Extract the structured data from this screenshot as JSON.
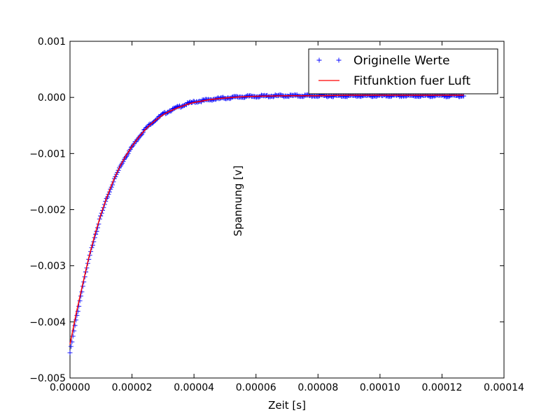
{
  "chart_data": {
    "type": "scatter",
    "xlabel": "Zeit [s]",
    "ylabel": "Spannung [v]",
    "xlim": [
      0,
      0.00014
    ],
    "ylim": [
      -0.005,
      0.001
    ],
    "x_ticks": [
      "0.00000",
      "0.00002",
      "0.00004",
      "0.00006",
      "0.00008",
      "0.00010",
      "0.00012",
      "0.00014"
    ],
    "y_ticks": [
      "0.001",
      "0.000",
      "−0.001",
      "−0.002",
      "−0.003",
      "−0.004",
      "−0.005"
    ],
    "legend_position": "top-right",
    "grid": false,
    "series": [
      {
        "name": "Originelle Werte",
        "kind": "points",
        "marker": "+",
        "color": "#0000ff",
        "points": [
          [
            0.0,
            -0.00455
          ],
          [
            2e-06,
            -0.00395
          ],
          [
            4e-06,
            -0.0034
          ],
          [
            6e-06,
            -0.0029
          ],
          [
            8e-06,
            -0.00248
          ],
          [
            1e-05,
            -0.0021
          ],
          [
            1.2e-05,
            -0.00178
          ],
          [
            1.4e-05,
            -0.0015
          ],
          [
            1.6e-05,
            -0.00125
          ],
          [
            1.8e-05,
            -0.00105
          ],
          [
            2e-05,
            -0.00088
          ],
          [
            2.2e-05,
            -0.00072
          ],
          [
            2.4e-05,
            -0.00058
          ],
          [
            2.6e-05,
            -0.00047
          ],
          [
            2.8e-05,
            -0.00038
          ],
          [
            3e-05,
            -0.0003
          ],
          [
            3.2e-05,
            -0.00024
          ],
          [
            3.5e-05,
            -0.00017
          ],
          [
            3.8e-05,
            -0.00011
          ],
          [
            4e-05,
            -8e-05
          ],
          [
            4.5e-05,
            -4e-05
          ],
          [
            5e-05,
            -1e-05
          ],
          [
            5.5e-05,
            1e-05
          ],
          [
            6e-05,
            2e-05
          ],
          [
            7e-05,
            3e-05
          ],
          [
            8e-05,
            3e-05
          ],
          [
            9e-05,
            3e-05
          ],
          [
            0.0001,
            3e-05
          ],
          [
            0.00011,
            3e-05
          ],
          [
            0.00012,
            3e-05
          ],
          [
            0.000127,
            3e-05
          ]
        ]
      },
      {
        "name": "Fitfunktion fuer Luft",
        "kind": "line",
        "color": "#ff0000",
        "points": [
          [
            0.0,
            -0.0044
          ],
          [
            2e-06,
            -0.00385
          ],
          [
            4e-06,
            -0.00335
          ],
          [
            6e-06,
            -0.00287
          ],
          [
            8e-06,
            -0.00245
          ],
          [
            1e-05,
            -0.00208
          ],
          [
            1.2e-05,
            -0.00176
          ],
          [
            1.4e-05,
            -0.00148
          ],
          [
            1.6e-05,
            -0.00124
          ],
          [
            1.8e-05,
            -0.00104
          ],
          [
            2e-05,
            -0.00087
          ],
          [
            2.2e-05,
            -0.00072
          ],
          [
            2.4e-05,
            -0.00059
          ],
          [
            2.6e-05,
            -0.00048
          ],
          [
            2.8e-05,
            -0.00039
          ],
          [
            3e-05,
            -0.00031
          ],
          [
            3.2e-05,
            -0.00025
          ],
          [
            3.5e-05,
            -0.00018
          ],
          [
            3.8e-05,
            -0.00012
          ],
          [
            4e-05,
            -9e-05
          ],
          [
            4.5e-05,
            -4e-05
          ],
          [
            5e-05,
            -1e-05
          ],
          [
            5.5e-05,
            1e-05
          ],
          [
            6e-05,
            2e-05
          ],
          [
            7e-05,
            3e-05
          ],
          [
            8e-05,
            3e-05
          ],
          [
            9e-05,
            4e-05
          ],
          [
            0.0001,
            4e-05
          ],
          [
            0.00011,
            4e-05
          ],
          [
            0.00012,
            4e-05
          ],
          [
            0.000127,
            4e-05
          ]
        ]
      }
    ]
  }
}
